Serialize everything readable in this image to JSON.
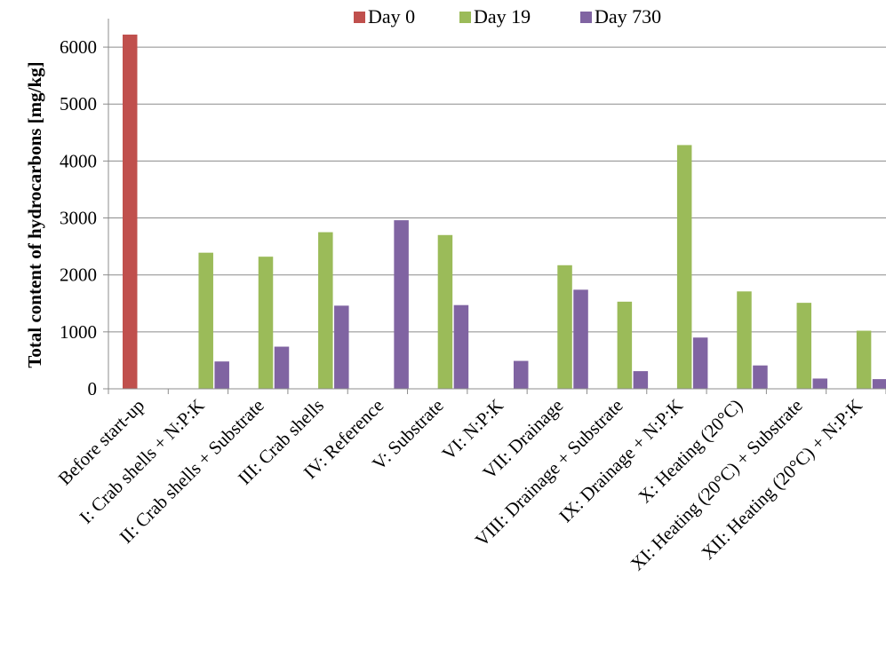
{
  "chart_data": {
    "type": "bar",
    "title": "",
    "xlabel": "",
    "ylabel": "Total content of hydrocarbons [mg/kg]",
    "ylim": [
      0,
      6500
    ],
    "yticks": [
      0,
      1000,
      2000,
      3000,
      4000,
      5000,
      6000
    ],
    "grid": true,
    "legend_position": "top",
    "categories": [
      "Before start-up",
      "I: Crab shells + N:P:K",
      "II: Crab shells + Substrate",
      "III: Crab shells",
      "IV: Reference",
      "V: Substrate",
      "VI: N:P:K",
      "VII: Drainage",
      "VIII: Drainage + Substrate",
      "IX: Drainage + N:P:K",
      "X: Heating (20°C)",
      "XI: Heating (20°C) + Substrate",
      "XII: Heating (20°C) + N:P:K"
    ],
    "series": [
      {
        "name": "Day 0",
        "color": "#C0504D",
        "values": [
          6220,
          null,
          null,
          null,
          null,
          null,
          null,
          null,
          null,
          null,
          null,
          null,
          null
        ]
      },
      {
        "name": "Day 19",
        "color": "#9BBB59",
        "values": [
          null,
          2390,
          2320,
          2750,
          null,
          2700,
          null,
          2170,
          1530,
          4280,
          1710,
          1510,
          1020
        ]
      },
      {
        "name": "Day 730",
        "color": "#8064A2",
        "values": [
          null,
          480,
          740,
          1460,
          2960,
          1470,
          490,
          1740,
          310,
          900,
          410,
          180,
          170
        ]
      }
    ]
  }
}
